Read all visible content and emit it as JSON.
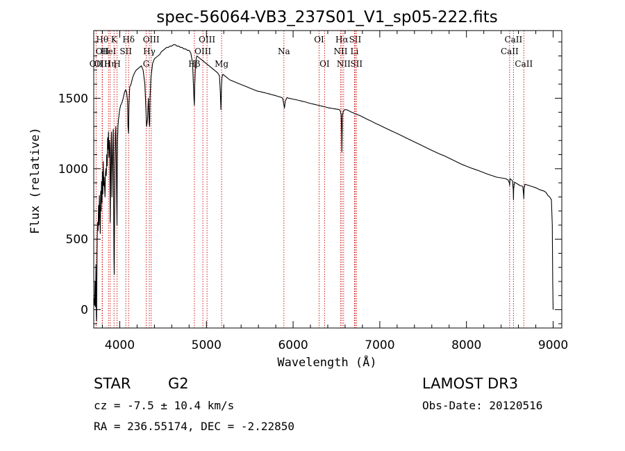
{
  "chart_data": {
    "type": "line",
    "title": "spec-56064-VB3_237S01_V1_sp05-222.fits",
    "xlabel": "Wavelength (Å)",
    "ylabel": "Flux (relative)",
    "xlim": [
      3700,
      9100
    ],
    "ylim": [
      -130,
      1980
    ],
    "x_ticks": [
      4000,
      5000,
      6000,
      7000,
      8000,
      9000
    ],
    "x_tick_labels": [
      "4000",
      "5000",
      "6000",
      "7000",
      "8000",
      "9000"
    ],
    "y_ticks": [
      0,
      500,
      1000,
      1500
    ],
    "y_tick_labels": [
      "0",
      "500",
      "1000",
      "1500"
    ],
    "grid": false,
    "series": [
      {
        "name": "spectrum",
        "x": [
          3700,
          3705,
          3710,
          3715,
          3720,
          3725,
          3730,
          3733,
          3735,
          3740,
          3745,
          3750,
          3755,
          3760,
          3765,
          3770,
          3775,
          3780,
          3785,
          3790,
          3795,
          3800,
          3805,
          3810,
          3815,
          3820,
          3825,
          3830,
          3835,
          3840,
          3845,
          3850,
          3855,
          3860,
          3865,
          3870,
          3875,
          3880,
          3885,
          3890,
          3895,
          3900,
          3905,
          3910,
          3915,
          3920,
          3925,
          3930,
          3933,
          3936,
          3940,
          3945,
          3950,
          3955,
          3960,
          3965,
          3968,
          3971,
          3975,
          3980,
          3985,
          3990,
          3995,
          4000,
          4010,
          4020,
          4030,
          4040,
          4050,
          4060,
          4070,
          4080,
          4090,
          4095,
          4101,
          4106,
          4115,
          4130,
          4150,
          4170,
          4190,
          4210,
          4230,
          4250,
          4270,
          4290,
          4300,
          4310,
          4320,
          4330,
          4340,
          4345,
          4350,
          4360,
          4380,
          4400,
          4420,
          4440,
          4460,
          4480,
          4500,
          4520,
          4540,
          4560,
          4580,
          4600,
          4620,
          4640,
          4660,
          4680,
          4700,
          4720,
          4740,
          4760,
          4780,
          4800,
          4820,
          4840,
          4850,
          4856,
          4861,
          4866,
          4875,
          4890,
          4910,
          4930,
          4950,
          4970,
          4990,
          5010,
          5030,
          5050,
          5070,
          5090,
          5110,
          5130,
          5150,
          5160,
          5167,
          5173,
          5180,
          5190,
          5210,
          5230,
          5250,
          5270,
          5290,
          5310,
          5330,
          5350,
          5370,
          5390,
          5410,
          5430,
          5450,
          5470,
          5490,
          5510,
          5530,
          5550,
          5570,
          5590,
          5610,
          5630,
          5650,
          5670,
          5690,
          5710,
          5730,
          5750,
          5770,
          5790,
          5810,
          5830,
          5850,
          5870,
          5880,
          5889,
          5895,
          5900,
          5910,
          5930,
          5950,
          5970,
          5990,
          6010,
          6030,
          6050,
          6070,
          6090,
          6110,
          6130,
          6150,
          6170,
          6190,
          6210,
          6230,
          6250,
          6270,
          6290,
          6310,
          6330,
          6350,
          6370,
          6390,
          6410,
          6430,
          6450,
          6470,
          6490,
          6510,
          6530,
          6545,
          6555,
          6560,
          6563,
          6566,
          6570,
          6580,
          6600,
          6620,
          6640,
          6660,
          6680,
          6700,
          6720,
          6740,
          6760,
          6780,
          6800,
          6850,
          6900,
          6950,
          7000,
          7050,
          7100,
          7150,
          7200,
          7250,
          7300,
          7350,
          7400,
          7450,
          7500,
          7550,
          7600,
          7650,
          7700,
          7750,
          7800,
          7850,
          7900,
          7950,
          8000,
          8050,
          8100,
          8150,
          8200,
          8250,
          8300,
          8350,
          8400,
          8450,
          8480,
          8495,
          8498,
          8502,
          8510,
          8530,
          8540,
          8542,
          8545,
          8555,
          8580,
          8620,
          8650,
          8660,
          8662,
          8665,
          8675,
          8700,
          8750,
          8800,
          8850,
          8900,
          8920,
          8940,
          8960,
          8980,
          8990,
          8995,
          9000
        ],
        "y": [
          50,
          80,
          30,
          200,
          20,
          320,
          -40,
          -80,
          180,
          500,
          620,
          560,
          740,
          600,
          810,
          680,
          540,
          840,
          700,
          910,
          760,
          980,
          820,
          1050,
          880,
          940,
          870,
          800,
          960,
          1000,
          950,
          1100,
          1020,
          1220,
          1140,
          1260,
          1080,
          1200,
          1150,
          620,
          900,
          1180,
          1260,
          800,
          1000,
          1150,
          1280,
          700,
          380,
          250,
          650,
          1050,
          1250,
          1300,
          1050,
          760,
          600,
          950,
          1200,
          1300,
          1350,
          1370,
          1400,
          1420,
          1450,
          1460,
          1480,
          1500,
          1530,
          1550,
          1560,
          1540,
          1480,
          1300,
          1250,
          1450,
          1580,
          1600,
          1650,
          1680,
          1700,
          1710,
          1720,
          1730,
          1700,
          1600,
          1450,
          1300,
          1350,
          1500,
          1320,
          1300,
          1500,
          1650,
          1750,
          1780,
          1790,
          1800,
          1810,
          1830,
          1840,
          1850,
          1860,
          1860,
          1870,
          1870,
          1880,
          1880,
          1870,
          1870,
          1860,
          1860,
          1850,
          1850,
          1840,
          1840,
          1820,
          1750,
          1600,
          1500,
          1450,
          1600,
          1760,
          1800,
          1790,
          1780,
          1770,
          1760,
          1750,
          1740,
          1730,
          1720,
          1710,
          1700,
          1690,
          1680,
          1660,
          1550,
          1420,
          1580,
          1650,
          1670,
          1660,
          1650,
          1640,
          1630,
          1625,
          1620,
          1615,
          1610,
          1605,
          1600,
          1595,
          1590,
          1585,
          1580,
          1575,
          1570,
          1565,
          1560,
          1555,
          1550,
          1548,
          1545,
          1542,
          1540,
          1536,
          1533,
          1530,
          1526,
          1523,
          1520,
          1516,
          1512,
          1508,
          1505,
          1500,
          1470,
          1450,
          1430,
          1480,
          1505,
          1500,
          1498,
          1495,
          1492,
          1490,
          1487,
          1484,
          1481,
          1478,
          1475,
          1472,
          1468,
          1465,
          1462,
          1459,
          1456,
          1453,
          1450,
          1447,
          1444,
          1441,
          1438,
          1435,
          1432,
          1430,
          1428,
          1426,
          1424,
          1422,
          1420,
          1410,
          1380,
          1250,
          1120,
          1260,
          1380,
          1410,
          1420,
          1418,
          1412,
          1405,
          1400,
          1395,
          1390,
          1385,
          1380,
          1374,
          1368,
          1352,
          1338,
          1322,
          1308,
          1293,
          1278,
          1264,
          1250,
          1235,
          1220,
          1205,
          1190,
          1175,
          1160,
          1145,
          1130,
          1116,
          1102,
          1090,
          1075,
          1060,
          1045,
          1030,
          1018,
          1006,
          995,
          984,
          972,
          960,
          950,
          940,
          935,
          930,
          920,
          900,
          880,
          930,
          925,
          915,
          850,
          780,
          860,
          905,
          895,
          880,
          875,
          810,
          790,
          860,
          890,
          885,
          875,
          865,
          850,
          840,
          830,
          810,
          800,
          780,
          600,
          200,
          0
        ]
      }
    ],
    "line_markers": [
      {
        "label": "OII",
        "wavelength": 3727,
        "row": 2
      },
      {
        "label": "Hθ",
        "wavelength": 3798,
        "row": 0
      },
      {
        "label": "OII",
        "wavelength": 3799,
        "row": 1
      },
      {
        "label": "OIII",
        "wavelength": 3799,
        "row": 2
      },
      {
        "label": "HeI",
        "wavelength": 3870,
        "row": 1
      },
      {
        "label": "Hη",
        "wavelength": 3889,
        "row": 2
      },
      {
        "label": "K",
        "wavelength": 3934,
        "row": 0
      },
      {
        "label": "SII",
        "wavelength": 4070,
        "row": 1
      },
      {
        "label": "H",
        "wavelength": 3969,
        "row": 2
      },
      {
        "label": "Hδ",
        "wavelength": 4102,
        "row": 0
      },
      {
        "label": "OIII",
        "wavelength": 4363,
        "row": 0
      },
      {
        "label": "Hγ",
        "wavelength": 4341,
        "row": 1
      },
      {
        "label": "G",
        "wavelength": 4305,
        "row": 2
      },
      {
        "label": "Hβ",
        "wavelength": 4861,
        "row": 2
      },
      {
        "label": "OIII",
        "wavelength": 5007,
        "row": 0
      },
      {
        "label": "OIII",
        "wavelength": 4959,
        "row": 1
      },
      {
        "label": "Mg",
        "wavelength": 5175,
        "row": 2
      },
      {
        "label": "Na",
        "wavelength": 5894,
        "row": 1
      },
      {
        "label": "OI",
        "wavelength": 6300,
        "row": 0
      },
      {
        "label": "OI",
        "wavelength": 6363,
        "row": 2
      },
      {
        "label": "Hα",
        "wavelength": 6563,
        "row": 0
      },
      {
        "label": "NII",
        "wavelength": 6548,
        "row": 1
      },
      {
        "label": "NII",
        "wavelength": 6583,
        "row": 2
      },
      {
        "label": "SII",
        "wavelength": 6716,
        "row": 0
      },
      {
        "label": "Li",
        "wavelength": 6708,
        "row": 1
      },
      {
        "label": "SII",
        "wavelength": 6731,
        "row": 2
      },
      {
        "label": "CaII",
        "wavelength": 8542,
        "row": 0
      },
      {
        "label": "CaII",
        "wavelength": 8498,
        "row": 1
      },
      {
        "label": "CaII",
        "wavelength": 8662,
        "row": 2
      }
    ]
  },
  "info": {
    "object_class": "STAR",
    "subclass": "G2",
    "survey": "LAMOST DR3",
    "cz": "cz = -7.5 ± 10.4 km/s",
    "obs_date": "Obs-Date: 20120516",
    "coords": "RA = 236.55174, DEC =  -2.22850"
  },
  "colors": {
    "spectrum": "#000000",
    "marker_line": "#cc0000",
    "axes": "#000000"
  }
}
